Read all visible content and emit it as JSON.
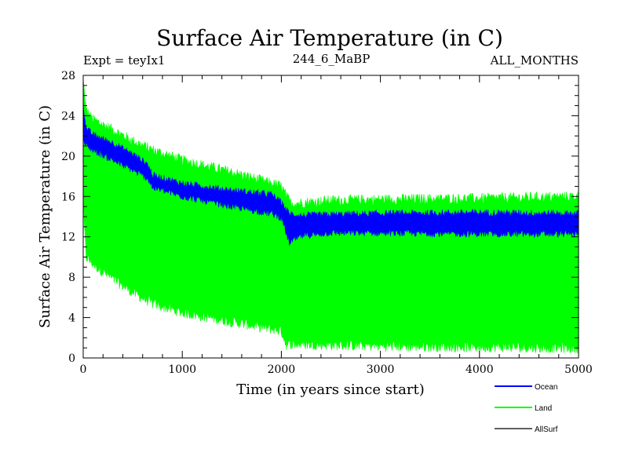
{
  "chart_data": {
    "type": "line",
    "title": "Surface Air Temperature (in C)",
    "expt_label": "Expt = teyIx1",
    "subtitle": "244_6_MaBP",
    "months_label": "ALL_MONTHS",
    "xlabel": "Time (in years since start)",
    "ylabel": "Surface Air Temperature (in C)",
    "xlim": [
      0,
      5000
    ],
    "ylim": [
      0,
      28
    ],
    "x_ticks": [
      "0",
      "1000",
      "2000",
      "3000",
      "4000",
      "5000"
    ],
    "y_ticks": [
      "0",
      "4",
      "8",
      "12",
      "16",
      "20",
      "24",
      "28"
    ],
    "series": [
      {
        "name": "Ocean",
        "color": "#0000ff",
        "style": "band",
        "x": [
          0,
          30,
          100,
          300,
          500,
          650,
          700,
          1000,
          1500,
          1900,
          2000,
          2080,
          2200,
          2500,
          3000,
          4000,
          5000
        ],
        "upper": [
          25.2,
          22.7,
          22.1,
          21.3,
          20.2,
          19.2,
          18.1,
          17.3,
          16.6,
          16.2,
          15.4,
          14.3,
          14.1,
          14.2,
          14.3,
          14.4,
          14.3
        ],
        "lower": [
          21.5,
          21.0,
          20.6,
          19.6,
          18.6,
          17.8,
          16.9,
          16.0,
          15.0,
          14.3,
          13.9,
          11.4,
          12.1,
          12.4,
          12.4,
          12.3,
          12.3
        ]
      },
      {
        "name": "Land",
        "color": "#00ff00",
        "style": "band",
        "x": [
          0,
          30,
          100,
          300,
          500,
          700,
          1000,
          1500,
          2000,
          2050,
          2100,
          2500,
          3000,
          4000,
          5000
        ],
        "upper": [
          27.5,
          24.5,
          23.6,
          22.6,
          21.5,
          20.6,
          19.6,
          18.4,
          17.0,
          16.0,
          15.3,
          15.6,
          15.7,
          15.8,
          16.0
        ],
        "lower": [
          15.0,
          10.0,
          9.3,
          7.8,
          6.5,
          5.4,
          4.5,
          3.6,
          2.7,
          1.3,
          1.4,
          1.3,
          1.2,
          1.1,
          1.0
        ]
      },
      {
        "name": "AllSurf",
        "color": "#000000",
        "style": "line",
        "x": [],
        "values": []
      }
    ]
  }
}
